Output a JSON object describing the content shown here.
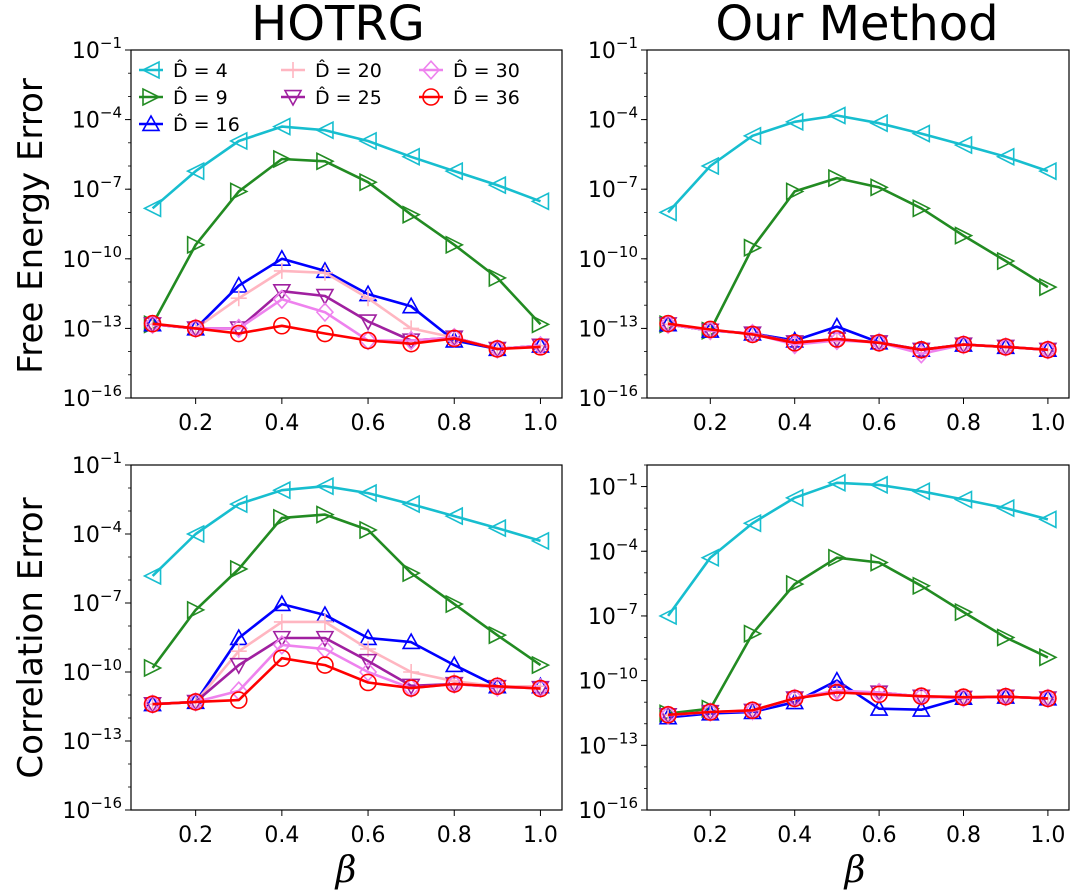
{
  "figure": {
    "column_titles": [
      "HOTRG",
      "Our Method"
    ],
    "row_labels": [
      "Free Energy Error",
      "Correlation Error"
    ],
    "xlabel": "β"
  },
  "series_styles": [
    {
      "name": "D̂ = 4",
      "color": "#17becf",
      "marker": "triangle-left"
    },
    {
      "name": "D̂ = 9",
      "color": "#228b22",
      "marker": "triangle-right"
    },
    {
      "name": "D̂ = 16",
      "color": "#0000ff",
      "marker": "triangle-up"
    },
    {
      "name": "D̂ = 20",
      "color": "#ffb6c1",
      "marker": "plus"
    },
    {
      "name": "D̂ = 25",
      "color": "#a020a0",
      "marker": "triangle-down"
    },
    {
      "name": "D̂ = 30",
      "color": "#ee82ee",
      "marker": "diamond"
    },
    {
      "name": "D̂ = 36",
      "color": "#ff0000",
      "marker": "circle"
    }
  ],
  "chart_data": [
    {
      "type": "line",
      "panel": "top-left",
      "title": "HOTRG",
      "ylabel": "Free Energy Error",
      "xlabel": "",
      "yscale": "log",
      "ylim": [
        1e-16,
        0.1
      ],
      "xlim": [
        0.05,
        1.05
      ],
      "xticks": [
        "0.2",
        "0.4",
        "0.6",
        "0.8",
        "1.0"
      ],
      "yticks": [
        "10^-1",
        "10^-4",
        "10^-7",
        "10^-10",
        "10^-13",
        "10^-16"
      ],
      "legend": "top-left",
      "x": [
        0.1,
        0.2,
        0.3,
        0.4,
        0.5,
        0.6,
        0.7,
        0.8,
        0.9,
        1.0
      ],
      "series": [
        {
          "name": "D̂ = 4",
          "values": [
            1.5e-08,
            6e-07,
            1.2e-05,
            5e-05,
            3.5e-05,
            1.2e-05,
            2.5e-06,
            6e-07,
            1.5e-07,
            3e-08
          ]
        },
        {
          "name": "D̂ = 9",
          "values": [
            1.5e-13,
            4e-10,
            8e-08,
            2e-06,
            1.6e-06,
            2e-07,
            8e-09,
            4e-10,
            1.5e-11,
            1.5e-13
          ]
        },
        {
          "name": "D̂ = 16",
          "values": [
            1.5e-13,
            1e-13,
            7e-12,
            1e-10,
            3e-11,
            3e-12,
            9e-13,
            3e-14,
            1.3e-14,
            1.8e-14
          ]
        },
        {
          "name": "D̂ = 20",
          "values": [
            1.5e-13,
            1e-13,
            2e-12,
            3e-11,
            2.5e-11,
            2e-12,
            1e-13,
            4e-14,
            1.3e-14,
            1.8e-14
          ]
        },
        {
          "name": "D̂ = 25",
          "values": [
            1.5e-13,
            1e-13,
            1e-13,
            4e-12,
            2.5e-12,
            2e-13,
            3e-14,
            4e-14,
            1.3e-14,
            1.8e-14
          ]
        },
        {
          "name": "D̂ = 30",
          "values": [
            1.5e-13,
            1e-13,
            1e-13,
            1.8e-12,
            5e-13,
            3e-14,
            3e-14,
            4e-14,
            1.3e-14,
            1.8e-14
          ]
        },
        {
          "name": "D̂ = 36",
          "values": [
            1.6e-13,
            1e-13,
            6e-14,
            1.3e-13,
            6e-14,
            3e-14,
            2.2e-14,
            3.7e-14,
            1.3e-14,
            1.6e-14
          ]
        }
      ]
    },
    {
      "type": "line",
      "panel": "top-right",
      "title": "Our Method",
      "ylabel": "",
      "xlabel": "",
      "yscale": "log",
      "ylim": [
        1e-16,
        0.1
      ],
      "xlim": [
        0.05,
        1.05
      ],
      "xticks": [
        "0.2",
        "0.4",
        "0.6",
        "0.8",
        "1.0"
      ],
      "yticks": [
        "10^-1",
        "10^-4",
        "10^-7",
        "10^-10",
        "10^-13",
        "10^-16"
      ],
      "x": [
        0.1,
        0.2,
        0.3,
        0.4,
        0.5,
        0.6,
        0.7,
        0.8,
        0.9,
        1.0
      ],
      "series": [
        {
          "name": "D̂ = 4",
          "values": [
            1e-08,
            1e-06,
            2e-05,
            8e-05,
            0.00015,
            7e-05,
            2.5e-05,
            8e-06,
            2.5e-06,
            6e-07
          ]
        },
        {
          "name": "D̂ = 9",
          "values": [
            1.5e-13,
            8e-14,
            3e-10,
            8e-08,
            3e-07,
            1.2e-07,
            1.5e-08,
            1e-09,
            8e-11,
            6e-12
          ]
        },
        {
          "name": "D̂ = 16",
          "values": [
            1.5e-13,
            8e-14,
            6e-14,
            3e-14,
            1.2e-13,
            2.5e-14,
            1.2e-14,
            2e-14,
            1.6e-14,
            1.2e-14
          ]
        },
        {
          "name": "D̂ = 20",
          "values": [
            1.5e-13,
            8e-14,
            6e-14,
            2.5e-14,
            3.5e-14,
            2.5e-14,
            1.2e-14,
            2e-14,
            1.6e-14,
            1.2e-14
          ]
        },
        {
          "name": "D̂ = 25",
          "values": [
            1.5e-13,
            8e-14,
            6e-14,
            2.5e-14,
            3.5e-14,
            2.5e-14,
            1.2e-14,
            2e-14,
            1.6e-14,
            1.2e-14
          ]
        },
        {
          "name": "D̂ = 30",
          "values": [
            1.5e-13,
            8e-14,
            6e-14,
            2e-14,
            3e-14,
            2.5e-14,
            8e-15,
            2e-14,
            1.6e-14,
            1.2e-14
          ]
        },
        {
          "name": "D̂ = 36",
          "values": [
            1.6e-13,
            9e-14,
            5.5e-14,
            2.4e-14,
            3.5e-14,
            2.4e-14,
            1.2e-14,
            2e-14,
            1.6e-14,
            1.2e-14
          ]
        }
      ]
    },
    {
      "type": "line",
      "panel": "bottom-left",
      "title": "",
      "ylabel": "Correlation Error",
      "xlabel": "β",
      "yscale": "log",
      "ylim": [
        1e-16,
        0.1
      ],
      "xlim": [
        0.05,
        1.05
      ],
      "xticks": [
        "0.2",
        "0.4",
        "0.6",
        "0.8",
        "1.0"
      ],
      "yticks": [
        "10^-1",
        "10^-4",
        "10^-7",
        "10^-10",
        "10^-13",
        "10^-16"
      ],
      "x": [
        0.1,
        0.2,
        0.3,
        0.4,
        0.5,
        0.6,
        0.7,
        0.8,
        0.9,
        1.0
      ],
      "series": [
        {
          "name": "D̂ = 4",
          "values": [
            1.5e-06,
            0.0001,
            0.002,
            0.008,
            0.012,
            0.006,
            0.002,
            0.0006,
            0.00018,
            5e-05
          ]
        },
        {
          "name": "D̂ = 9",
          "values": [
            1.5e-10,
            5e-08,
            3e-06,
            0.0005,
            0.0007,
            0.00015,
            2e-06,
            9e-08,
            4e-09,
            2e-10
          ]
        },
        {
          "name": "D̂ = 16",
          "values": [
            4e-12,
            5e-12,
            3e-09,
            9e-08,
            3e-08,
            3e-09,
            2e-09,
            2e-10,
            2.4e-11,
            2.4e-11
          ]
        },
        {
          "name": "D̂ = 20",
          "values": [
            4e-12,
            5e-12,
            8e-10,
            1.5e-08,
            1.5e-08,
            1e-09,
            1e-10,
            4e-11,
            2.4e-11,
            2.4e-11
          ]
        },
        {
          "name": "D̂ = 25",
          "values": [
            4e-12,
            5e-12,
            2e-10,
            3e-09,
            3e-09,
            3e-10,
            2.5e-11,
            3e-11,
            2.2e-11,
            2e-11
          ]
        },
        {
          "name": "D̂ = 30",
          "values": [
            4e-12,
            5e-12,
            1.5e-11,
            1.5e-09,
            1e-09,
            1e-10,
            2e-11,
            3e-11,
            2.2e-11,
            2e-11
          ]
        },
        {
          "name": "D̂ = 36",
          "values": [
            4e-12,
            5e-12,
            6e-12,
            4e-10,
            2e-10,
            3.5e-11,
            2e-11,
            3e-11,
            2.4e-11,
            1.9e-11
          ]
        }
      ]
    },
    {
      "type": "line",
      "panel": "bottom-right",
      "title": "",
      "ylabel": "",
      "xlabel": "β",
      "yscale": "log",
      "ylim": [
        1e-16,
        1.0
      ],
      "xlim": [
        0.05,
        1.05
      ],
      "xticks": [
        "0.2",
        "0.4",
        "0.6",
        "0.8",
        "1.0"
      ],
      "yticks": [
        "10^-1",
        "10^-4",
        "10^-7",
        "10^-10",
        "10^-13",
        "10^-16"
      ],
      "x": [
        0.1,
        0.2,
        0.3,
        0.4,
        0.5,
        0.6,
        0.7,
        0.8,
        0.9,
        1.0
      ],
      "series": [
        {
          "name": "D̂ = 4",
          "values": [
            1e-07,
            5e-05,
            0.002,
            0.03,
            0.15,
            0.12,
            0.06,
            0.025,
            0.01,
            0.003
          ]
        },
        {
          "name": "D̂ = 9",
          "values": [
            3e-12,
            5e-12,
            1.5e-08,
            3e-06,
            5e-05,
            3e-05,
            2.5e-06,
            1.5e-07,
            1e-08,
            1.2e-09
          ]
        },
        {
          "name": "D̂ = 16",
          "values": [
            2e-12,
            3e-12,
            3.5e-12,
            1e-11,
            1e-10,
            5e-12,
            4.5e-12,
            1.6e-11,
            1.8e-11,
            1.5e-11
          ]
        },
        {
          "name": "D̂ = 20",
          "values": [
            2.5e-12,
            3.5e-12,
            4e-12,
            1.5e-11,
            3e-11,
            2.8e-11,
            1.8e-11,
            1.6e-11,
            1.8e-11,
            1.5e-11
          ]
        },
        {
          "name": "D̂ = 25",
          "values": [
            2.5e-12,
            3.5e-12,
            4e-12,
            1.5e-11,
            3e-11,
            2.8e-11,
            1.8e-11,
            1.6e-11,
            1.8e-11,
            1.5e-11
          ]
        },
        {
          "name": "D̂ = 30",
          "values": [
            2.5e-12,
            3.5e-12,
            4e-12,
            1.5e-11,
            3.5e-11,
            2.8e-11,
            1.8e-11,
            1.6e-11,
            1.8e-11,
            1.5e-11
          ]
        },
        {
          "name": "D̂ = 36",
          "values": [
            2.6e-12,
            3.5e-12,
            4.2e-12,
            1.5e-11,
            2.8e-11,
            2.3e-11,
            1.9e-11,
            1.7e-11,
            1.8e-11,
            1.5e-11
          ]
        }
      ]
    }
  ]
}
